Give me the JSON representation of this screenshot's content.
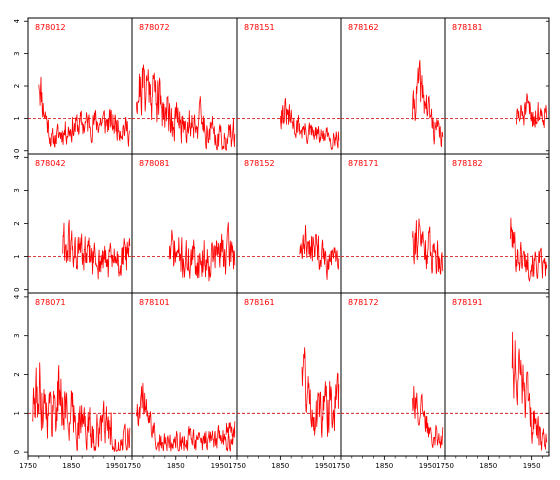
{
  "chart_data": {
    "type": "line",
    "layout": "small multiples 3 rows x 5 columns",
    "x_ticks": [
      "1750",
      "1850",
      "1950"
    ],
    "y_ticks": [
      "0",
      "1",
      "2",
      "3",
      "4"
    ],
    "xlim": [
      1750,
      1990
    ],
    "ylim": [
      -0.1,
      4.1
    ],
    "reference_line": {
      "y": 1,
      "style": "dashed",
      "color": "#cc0000"
    },
    "series_color": "#ff0000",
    "panels": [
      {
        "title": "878012",
        "start": 1775,
        "end": 1985,
        "seed": 11,
        "anchors": [
          [
            1775,
            2.4
          ],
          [
            1785,
            1.4
          ],
          [
            1805,
            0.3
          ],
          [
            1830,
            0.6
          ],
          [
            1870,
            0.8
          ],
          [
            1920,
            0.9
          ],
          [
            1960,
            0.8
          ],
          [
            1985,
            0.6
          ]
        ],
        "amp": 0.38
      },
      {
        "title": "878072",
        "start": 1760,
        "end": 1985,
        "seed": 21,
        "anchors": [
          [
            1760,
            1.9
          ],
          [
            1790,
            2.1
          ],
          [
            1820,
            1.4
          ],
          [
            1860,
            0.8
          ],
          [
            1900,
            1.0
          ],
          [
            1930,
            0.6
          ],
          [
            1960,
            0.3
          ],
          [
            1985,
            0.5
          ]
        ],
        "amp": 0.5
      },
      {
        "title": "878151",
        "start": 1850,
        "end": 1985,
        "seed": 31,
        "anchors": [
          [
            1850,
            1.3
          ],
          [
            1880,
            0.8
          ],
          [
            1920,
            0.5
          ],
          [
            1960,
            0.4
          ],
          [
            1985,
            0.5
          ]
        ],
        "amp": 0.35
      },
      {
        "title": "878162",
        "start": 1915,
        "end": 1985,
        "seed": 41,
        "anchors": [
          [
            1915,
            1.2
          ],
          [
            1930,
            2.0
          ],
          [
            1945,
            1.5
          ],
          [
            1965,
            0.7
          ],
          [
            1985,
            0.4
          ]
        ],
        "amp": 0.4
      },
      {
        "title": "878181",
        "start": 1915,
        "end": 1985,
        "seed": 51,
        "anchors": [
          [
            1915,
            1.0
          ],
          [
            1940,
            1.2
          ],
          [
            1960,
            1.1
          ],
          [
            1985,
            1.3
          ]
        ],
        "amp": 0.35
      },
      {
        "title": "878042",
        "start": 1830,
        "end": 1985,
        "seed": 61,
        "anchors": [
          [
            1830,
            1.4
          ],
          [
            1860,
            1.1
          ],
          [
            1900,
            0.9
          ],
          [
            1940,
            0.8
          ],
          [
            1985,
            1.0
          ]
        ],
        "amp": 0.5
      },
      {
        "title": "878081",
        "start": 1835,
        "end": 1985,
        "seed": 71,
        "anchors": [
          [
            1835,
            1.2
          ],
          [
            1870,
            0.9
          ],
          [
            1910,
            0.9
          ],
          [
            1950,
            1.1
          ],
          [
            1985,
            1.2
          ]
        ],
        "amp": 0.5
      },
      {
        "title": "878152",
        "start": 1895,
        "end": 1985,
        "seed": 81,
        "anchors": [
          [
            1895,
            1.3
          ],
          [
            1920,
            1.5
          ],
          [
            1950,
            0.9
          ],
          [
            1985,
            0.8
          ]
        ],
        "amp": 0.4
      },
      {
        "title": "878171",
        "start": 1915,
        "end": 1985,
        "seed": 91,
        "anchors": [
          [
            1915,
            1.9
          ],
          [
            1930,
            1.5
          ],
          [
            1955,
            1.2
          ],
          [
            1985,
            1.0
          ]
        ],
        "amp": 0.45
      },
      {
        "title": "878182",
        "start": 1900,
        "end": 1985,
        "seed": 101,
        "anchors": [
          [
            1900,
            1.8
          ],
          [
            1915,
            1.1
          ],
          [
            1935,
            0.9
          ],
          [
            1960,
            0.8
          ],
          [
            1985,
            0.6
          ]
        ],
        "amp": 0.4
      },
      {
        "title": "878071",
        "start": 1760,
        "end": 1985,
        "seed": 111,
        "anchors": [
          [
            1760,
            1.1
          ],
          [
            1780,
            1.6
          ],
          [
            1800,
            1.0
          ],
          [
            1820,
            1.5
          ],
          [
            1840,
            1.0
          ],
          [
            1870,
            0.8
          ],
          [
            1900,
            0.5
          ],
          [
            1930,
            0.6
          ],
          [
            1960,
            0.4
          ],
          [
            1985,
            0.3
          ]
        ],
        "amp": 0.55
      },
      {
        "title": "878101",
        "start": 1760,
        "end": 1985,
        "seed": 121,
        "anchors": [
          [
            1760,
            1.2
          ],
          [
            1775,
            1.4
          ],
          [
            1790,
            0.7
          ],
          [
            1810,
            0.4
          ],
          [
            1830,
            0.2
          ],
          [
            1850,
            0.3
          ]
        ],
        "amp": 0.35,
        "extra_start": 1965,
        "extra_end": 1985,
        "extra_level": 0.55
      },
      {
        "title": "878161",
        "start": 1900,
        "end": 1985,
        "seed": 131,
        "anchors": [
          [
            1900,
            2.6
          ],
          [
            1915,
            1.3
          ],
          [
            1935,
            1.0
          ],
          [
            1960,
            1.2
          ],
          [
            1985,
            1.3
          ]
        ],
        "amp": 0.5
      },
      {
        "title": "878172",
        "start": 1915,
        "end": 1985,
        "seed": 141,
        "anchors": [
          [
            1915,
            1.6
          ],
          [
            1930,
            1.1
          ],
          [
            1950,
            0.7
          ],
          [
            1985,
            0.4
          ]
        ],
        "amp": 0.35
      },
      {
        "title": "878191",
        "start": 1905,
        "end": 1985,
        "seed": 151,
        "anchors": [
          [
            1905,
            2.5
          ],
          [
            1920,
            2.0
          ],
          [
            1940,
            1.2
          ],
          [
            1960,
            0.6
          ],
          [
            1985,
            0.3
          ]
        ],
        "amp": 0.45
      }
    ]
  }
}
